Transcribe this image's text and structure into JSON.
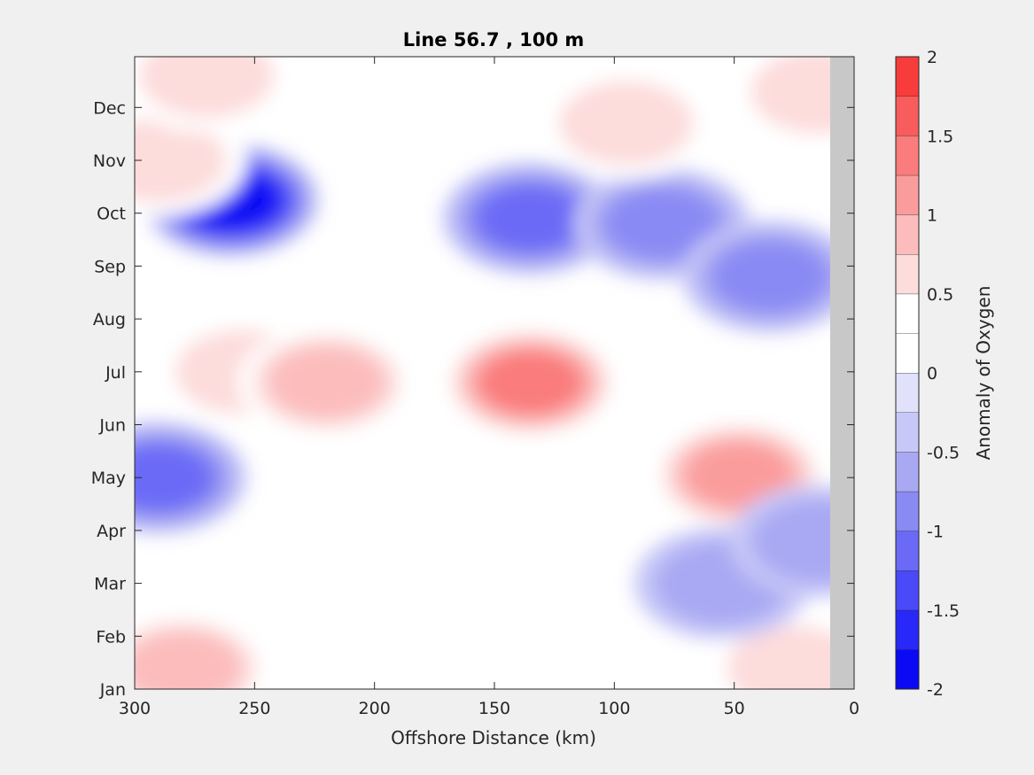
{
  "chart_data": {
    "type": "heatmap",
    "title": "Line 56.7 , 100 m",
    "xlabel": "Offshore Distance (km)",
    "ylabel": "",
    "x_reversed": true,
    "xlim": [
      0,
      300
    ],
    "x_ticks": [
      {
        "value": 300,
        "label": "300"
      },
      {
        "value": 250,
        "label": "250"
      },
      {
        "value": 200,
        "label": "200"
      },
      {
        "value": 150,
        "label": "150"
      },
      {
        "value": 100,
        "label": "100"
      },
      {
        "value": 50,
        "label": "50"
      },
      {
        "value": 0,
        "label": "0"
      }
    ],
    "y_ticks": [
      "Jan",
      "Feb",
      "Mar",
      "Apr",
      "May",
      "Jun",
      "Jul",
      "Aug",
      "Sep",
      "Oct",
      "Nov",
      "Dec"
    ],
    "colorbar": {
      "label": "Anomaly of Oxygen",
      "range": [
        -2,
        2
      ],
      "ticks": [
        {
          "value": 2,
          "label": "2"
        },
        {
          "value": 1.5,
          "label": "1.5"
        },
        {
          "value": 1,
          "label": "1"
        },
        {
          "value": 0.5,
          "label": "0.5"
        },
        {
          "value": 0,
          "label": "0"
        },
        {
          "value": -0.5,
          "label": "-0.5"
        },
        {
          "value": -1,
          "label": "-1"
        },
        {
          "value": -1.5,
          "label": "-1.5"
        },
        {
          "value": -2,
          "label": "-2"
        }
      ],
      "levels": [
        -2,
        -1.75,
        -1.5,
        -1.25,
        -1,
        -0.75,
        -0.5,
        -0.25,
        0,
        0.25,
        0.5,
        0.75,
        1,
        1.25,
        1.5,
        1.75,
        2
      ],
      "colors": [
        "#0a0af5",
        "#2828f8",
        "#4a4af8",
        "#6a6af6",
        "#8a8af4",
        "#a9a9f3",
        "#c8c8f8",
        "#e1e1fb",
        "#ffffff",
        "#ffffff",
        "#fddcdc",
        "#fcbcbc",
        "#fb9c9c",
        "#fa7c7c",
        "#f85c5c",
        "#f83c3c",
        "#f61e1e"
      ]
    },
    "anomalies": [
      {
        "x": 260,
        "month": 9.25,
        "value": -1.75
      },
      {
        "x": 290,
        "month": 10.0,
        "value": 0.5
      },
      {
        "x": 270,
        "month": 11.6,
        "value": 0.6
      },
      {
        "x": 135,
        "month": 8.9,
        "value": -1.1
      },
      {
        "x": 80,
        "month": 8.8,
        "value": -0.8
      },
      {
        "x": 35,
        "month": 7.8,
        "value": -0.7
      },
      {
        "x": 290,
        "month": 4.0,
        "value": -1.0
      },
      {
        "x": 255,
        "month": 6.0,
        "value": 0.6
      },
      {
        "x": 220,
        "month": 5.8,
        "value": 0.7
      },
      {
        "x": 135,
        "month": 5.8,
        "value": 1.25
      },
      {
        "x": 48,
        "month": 4.05,
        "value": 1.0
      },
      {
        "x": 280,
        "month": 0.4,
        "value": 0.8
      },
      {
        "x": 210,
        "month": 1.5,
        "value": 0.3
      },
      {
        "x": 95,
        "month": 10.7,
        "value": 0.5
      },
      {
        "x": 15,
        "month": 11.3,
        "value": 0.4
      },
      {
        "x": 25,
        "month": 0.4,
        "value": 0.6
      },
      {
        "x": 55,
        "month": 2.0,
        "value": -0.5
      },
      {
        "x": 15,
        "month": 2.8,
        "value": -0.4
      }
    ],
    "land_mask_below_km": 10
  }
}
